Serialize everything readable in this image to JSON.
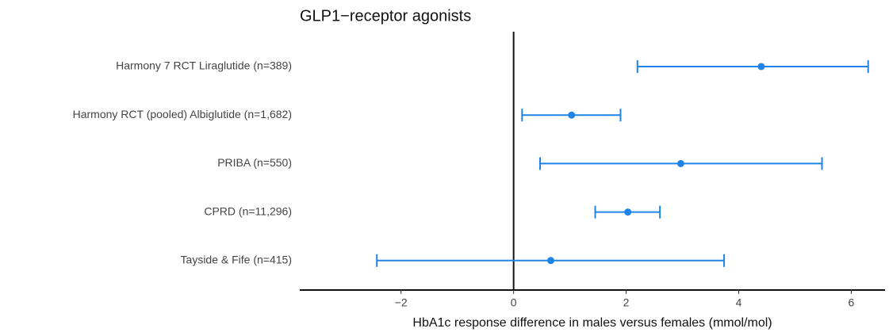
{
  "chart_data": {
    "type": "forest",
    "title": "GLP1−receptor agonists",
    "xlabel": "HbA1c response difference in males versus females (mmol/mol)",
    "categories": [
      "Harmony 7 RCT Liraglutide (n=389)",
      "Harmony RCT (pooled) Albiglutide (n=1,682)",
      "PRIBA (n=550)",
      "CPRD (n=11,296)",
      "Tayside & Fife (n=415)"
    ],
    "values": [
      4.4,
      1.03,
      2.97,
      2.03,
      0.66
    ],
    "lower": [
      2.2,
      0.15,
      0.47,
      1.45,
      -2.43
    ],
    "upper": [
      6.3,
      1.9,
      5.48,
      2.6,
      3.74
    ],
    "color": "#1e84e6",
    "xlim": [
      -3.8,
      6.6
    ],
    "xticks": [
      {
        "value": -2,
        "label": "−2"
      },
      0,
      2,
      4,
      6
    ],
    "vline": 0
  }
}
